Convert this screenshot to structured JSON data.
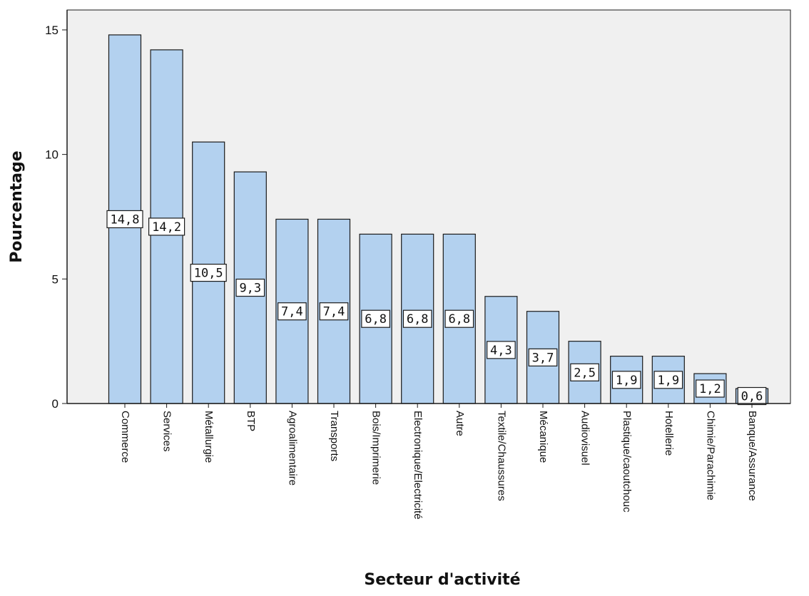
{
  "chart_data": {
    "type": "bar",
    "title": "",
    "xlabel": "Secteur d'activité",
    "ylabel": "Pourcentage",
    "ylim": [
      0,
      15.8
    ],
    "yticks": [
      0,
      5,
      10,
      15
    ],
    "ytick_labels": [
      "0",
      "5",
      "10",
      "15"
    ],
    "grid": false,
    "categories": [
      "Commerce",
      "Services",
      "Métallurgie",
      "BTP",
      "Agroalimentaire",
      "Transports",
      "Bois/Imprimerie",
      "Electronique/Electricité",
      "Autre",
      "Textile/Chaussures",
      "Mécanique",
      "Audiovisuel",
      "Plastique/caoutchouc",
      "Hotellerie",
      "Chimie/Parachimie",
      "Banque/Assurance"
    ],
    "values": [
      14.8,
      14.2,
      10.5,
      9.3,
      7.4,
      7.4,
      6.8,
      6.8,
      6.8,
      4.3,
      3.7,
      2.5,
      1.9,
      1.9,
      1.2,
      0.6
    ],
    "data_labels": [
      "14,8",
      "14,2",
      "10,5",
      "9,3",
      "7,4",
      "7,4",
      "6,8",
      "6,8",
      "6,8",
      "4,3",
      "3,7",
      "2,5",
      "1,9",
      "1,9",
      "1,2",
      "0,6"
    ],
    "colors": {
      "bar_fill": "#b3d1ef",
      "bar_stroke": "#1a1a1a",
      "plot_background": "#f0f0f0",
      "axis": "#1a1a1a"
    }
  }
}
